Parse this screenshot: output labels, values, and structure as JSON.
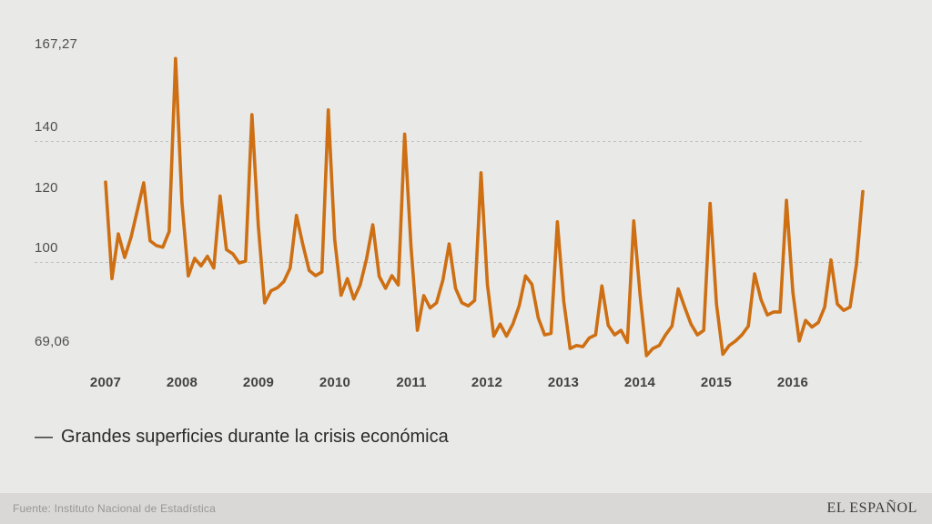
{
  "chart_data": {
    "type": "line",
    "title": "",
    "legend_prefix": "—",
    "frequency": "monthly",
    "x_start": "2007-01",
    "x_end": "2016-12",
    "x_tick_labels": [
      "2007",
      "2008",
      "2009",
      "2010",
      "2011",
      "2012",
      "2013",
      "2014",
      "2015",
      "2016"
    ],
    "y_ticks": [
      {
        "label": "167,27",
        "value": 167.27
      },
      {
        "label": "140",
        "value": 140
      },
      {
        "label": "120",
        "value": 120
      },
      {
        "label": "100",
        "value": 100
      },
      {
        "label": "69,06",
        "value": 69.06
      }
    ],
    "gridlines_at": [
      140,
      100
    ],
    "ylim": [
      69.06,
      167.27
    ],
    "ymax_label": "167,27",
    "ymin_label": "69,06",
    "grid": "dashed-horizontal",
    "legend_position": "below-left",
    "line_color": "#cd6f12",
    "background_color": "#e9e9e8",
    "series": [
      {
        "name": "Grandes superficies durante la crisis económica",
        "values": [
          126.4,
          94.5,
          109.3,
          101.5,
          108.2,
          117.2,
          126.2,
          107.0,
          105.4,
          104.9,
          110.1,
          167.27,
          119.8,
          95.4,
          101.2,
          98.7,
          101.9,
          98.0,
          121.8,
          104.1,
          102.7,
          99.7,
          100.3,
          148.7,
          112.0,
          86.5,
          90.5,
          91.5,
          93.5,
          98.0,
          115.4,
          105.8,
          97.2,
          95.5,
          96.7,
          150.3,
          107.5,
          89.0,
          94.5,
          87.8,
          92.4,
          101.0,
          112.3,
          95.3,
          91.3,
          95.5,
          92.4,
          142.3,
          105.0,
          77.4,
          88.9,
          84.8,
          86.5,
          94.0,
          106.0,
          91.3,
          86.5,
          85.5,
          87.3,
          129.5,
          92.6,
          75.5,
          79.5,
          75.5,
          79.5,
          85.6,
          95.4,
          92.6,
          81.5,
          75.9,
          76.4,
          113.3,
          87.0,
          71.4,
          72.4,
          72.0,
          74.9,
          75.9,
          92.1,
          79.0,
          75.9,
          77.4,
          73.4,
          113.6,
          89.0,
          69.06,
          71.4,
          72.4,
          75.9,
          78.8,
          91.1,
          85.1,
          79.5,
          75.9,
          77.4,
          119.4,
          86.1,
          69.5,
          72.4,
          73.9,
          75.9,
          78.8,
          96.1,
          87.6,
          82.5,
          83.5,
          83.5,
          120.4,
          90.1,
          73.9,
          80.7,
          78.5,
          80.0,
          85.1,
          100.7,
          86.1,
          84.0,
          85.1,
          99.2,
          123.3
        ]
      }
    ]
  },
  "footer": {
    "source": "Fuente: Instituto Nacional de Estadística",
    "brand": "EL ESPAÑOL"
  }
}
